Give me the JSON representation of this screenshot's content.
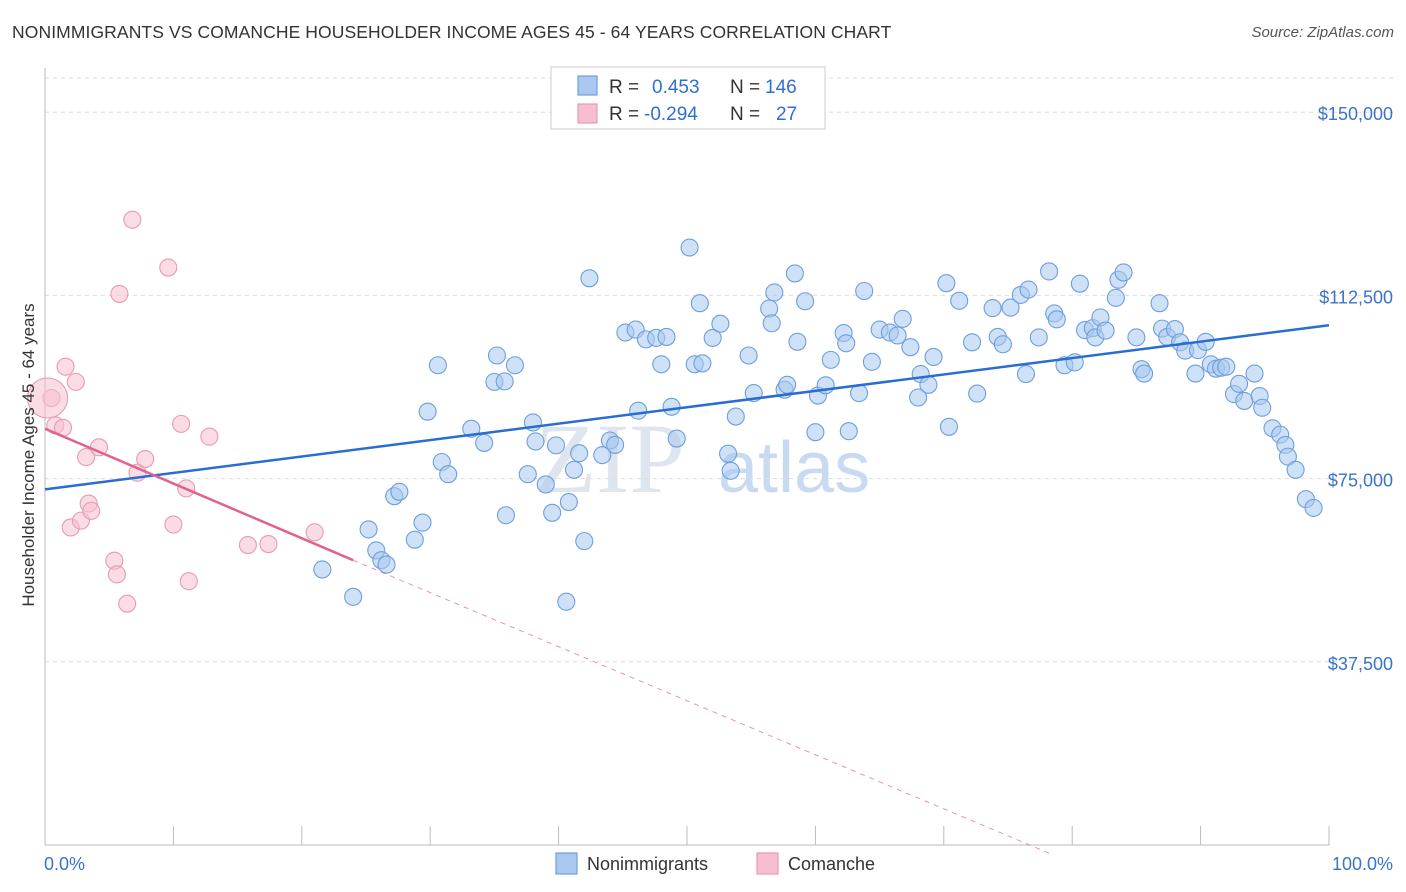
{
  "header": {
    "title": "NONIMMIGRANTS VS COMANCHE HOUSEHOLDER INCOME AGES 45 - 64 YEARS CORRELATION CHART",
    "source": "Source: ZipAtlas.com"
  },
  "watermark": {
    "zip": "ZIP",
    "atlas": "atlas"
  },
  "legend_top": [
    {
      "r_label": "R =",
      "r_value": "0.453",
      "n_label": "N =",
      "n_value": "146"
    },
    {
      "r_label": "R =",
      "r_value": "-0.294",
      "n_label": "N =",
      "n_value": "27"
    }
  ],
  "legend_bottom": [
    {
      "label": "Nonimmigrants"
    },
    {
      "label": "Comanche"
    }
  ],
  "colors": {
    "blue_fill": "#a8c8f0",
    "blue_stroke": "#6d9fdc",
    "blue_line": "#2a6dd0",
    "pink_fill": "#f6bfd0",
    "pink_stroke": "#e89ab4",
    "pink_line": "#e0628f",
    "grid": "#dddddd",
    "axis_text": "#3a74c8"
  },
  "chart_data": {
    "type": "scatter",
    "title": "NONIMMIGRANTS VS COMANCHE HOUSEHOLDER INCOME AGES 45 - 64 YEARS CORRELATION CHART",
    "xlabel": "",
    "ylabel": "Householder Income Ages 45 - 64 years",
    "xlim": [
      0,
      100
    ],
    "ylim": [
      0,
      157000
    ],
    "x_tick_labels": [
      "0.0%",
      "100.0%"
    ],
    "y_ticks": [
      37500,
      75000,
      112500,
      150000
    ],
    "y_tick_labels": [
      "$37,500",
      "$75,000",
      "$112,500",
      "$150,000"
    ],
    "grid": true,
    "legend_position": "top-center",
    "series": [
      {
        "name": "Nonimmigrants",
        "trend": {
          "x": [
            0,
            100
          ],
          "y": [
            72800,
            106400
          ]
        },
        "points": [
          [
            21.6,
            56400
          ],
          [
            24.0,
            50800
          ],
          [
            25.2,
            64600
          ],
          [
            25.8,
            60300
          ],
          [
            26.2,
            58300
          ],
          [
            26.6,
            57400
          ],
          [
            27.2,
            71400
          ],
          [
            27.6,
            72300
          ],
          [
            28.8,
            62500
          ],
          [
            29.4,
            66000
          ],
          [
            29.8,
            88700
          ],
          [
            30.6,
            98200
          ],
          [
            30.9,
            78400
          ],
          [
            31.4,
            75900
          ],
          [
            33.2,
            85200
          ],
          [
            34.2,
            82300
          ],
          [
            35.0,
            94800
          ],
          [
            35.2,
            100200
          ],
          [
            35.8,
            94900
          ],
          [
            35.9,
            67500
          ],
          [
            36.6,
            98200
          ],
          [
            37.6,
            75900
          ],
          [
            38.0,
            86500
          ],
          [
            38.2,
            82600
          ],
          [
            39.0,
            73800
          ],
          [
            39.5,
            68000
          ],
          [
            39.8,
            81800
          ],
          [
            40.6,
            49800
          ],
          [
            40.8,
            70200
          ],
          [
            41.2,
            76800
          ],
          [
            41.6,
            80200
          ],
          [
            42.0,
            62200
          ],
          [
            42.4,
            116000
          ],
          [
            43.4,
            79800
          ],
          [
            44.0,
            82800
          ],
          [
            44.4,
            81900
          ],
          [
            45.2,
            104900
          ],
          [
            46.0,
            105500
          ],
          [
            46.2,
            88900
          ],
          [
            46.8,
            103500
          ],
          [
            47.6,
            103800
          ],
          [
            48.0,
            98400
          ],
          [
            48.4,
            104000
          ],
          [
            48.8,
            89700
          ],
          [
            49.2,
            83200
          ],
          [
            50.2,
            122300
          ],
          [
            50.6,
            98400
          ],
          [
            51.0,
            110900
          ],
          [
            51.2,
            98600
          ],
          [
            52.0,
            103800
          ],
          [
            52.6,
            106700
          ],
          [
            53.2,
            80100
          ],
          [
            53.4,
            76600
          ],
          [
            53.8,
            87700
          ],
          [
            54.8,
            100200
          ],
          [
            55.2,
            92500
          ],
          [
            56.4,
            109800
          ],
          [
            56.6,
            106800
          ],
          [
            56.8,
            113100
          ],
          [
            57.6,
            93200
          ],
          [
            57.8,
            94200
          ],
          [
            58.4,
            117000
          ],
          [
            58.6,
            103000
          ],
          [
            59.2,
            111300
          ],
          [
            60.0,
            84500
          ],
          [
            60.2,
            92000
          ],
          [
            60.8,
            94100
          ],
          [
            61.2,
            99300
          ],
          [
            62.2,
            104800
          ],
          [
            62.4,
            102700
          ],
          [
            62.6,
            84700
          ],
          [
            63.4,
            92500
          ],
          [
            63.8,
            113400
          ],
          [
            64.4,
            98900
          ],
          [
            65.0,
            105500
          ],
          [
            65.8,
            104900
          ],
          [
            66.4,
            104300
          ],
          [
            66.8,
            107700
          ],
          [
            67.4,
            101900
          ],
          [
            68.0,
            91600
          ],
          [
            68.2,
            96400
          ],
          [
            68.8,
            94200
          ],
          [
            69.2,
            99900
          ],
          [
            70.2,
            115000
          ],
          [
            70.4,
            85600
          ],
          [
            71.2,
            111400
          ],
          [
            72.2,
            102900
          ],
          [
            72.6,
            92400
          ],
          [
            73.8,
            109900
          ],
          [
            74.2,
            104000
          ],
          [
            74.6,
            102500
          ],
          [
            75.2,
            110000
          ],
          [
            76.0,
            112600
          ],
          [
            76.4,
            96400
          ],
          [
            76.6,
            113700
          ],
          [
            77.4,
            103900
          ],
          [
            78.2,
            117400
          ],
          [
            78.6,
            108800
          ],
          [
            78.8,
            107600
          ],
          [
            79.4,
            98200
          ],
          [
            80.2,
            98800
          ],
          [
            80.6,
            114900
          ],
          [
            81.0,
            105400
          ],
          [
            81.6,
            105800
          ],
          [
            81.8,
            103900
          ],
          [
            82.2,
            108000
          ],
          [
            82.6,
            105300
          ],
          [
            83.4,
            112000
          ],
          [
            83.6,
            115700
          ],
          [
            84.0,
            117200
          ],
          [
            85.0,
            103900
          ],
          [
            85.4,
            97400
          ],
          [
            85.6,
            96500
          ],
          [
            86.8,
            110900
          ],
          [
            87.0,
            105700
          ],
          [
            87.4,
            104000
          ],
          [
            88.0,
            105600
          ],
          [
            88.4,
            102900
          ],
          [
            88.8,
            101200
          ],
          [
            89.6,
            96500
          ],
          [
            89.8,
            101300
          ],
          [
            90.4,
            103000
          ],
          [
            90.8,
            98400
          ],
          [
            91.2,
            97500
          ],
          [
            91.6,
            97700
          ],
          [
            92.0,
            97900
          ],
          [
            92.6,
            92300
          ],
          [
            93.0,
            94400
          ],
          [
            93.4,
            90900
          ],
          [
            94.2,
            96500
          ],
          [
            94.6,
            91900
          ],
          [
            94.8,
            89500
          ],
          [
            95.6,
            85300
          ],
          [
            96.2,
            84000
          ],
          [
            96.6,
            81900
          ],
          [
            96.8,
            79500
          ],
          [
            97.4,
            76800
          ],
          [
            98.2,
            70800
          ],
          [
            98.8,
            69000
          ]
        ]
      },
      {
        "name": "Comanche",
        "trend": {
          "x": [
            0,
            24.0
          ],
          "y": [
            85200,
            58300
          ]
        },
        "trend_dashed": {
          "x": [
            24.0,
            78.5
          ],
          "y": [
            58300,
            -2000
          ]
        },
        "points": [
          [
            0.5,
            91500
          ],
          [
            0.8,
            85900
          ],
          [
            1.4,
            85400
          ],
          [
            1.6,
            97900
          ],
          [
            2.0,
            65000
          ],
          [
            2.4,
            94800
          ],
          [
            2.8,
            66400
          ],
          [
            3.2,
            79400
          ],
          [
            3.4,
            69900
          ],
          [
            3.6,
            68400
          ],
          [
            4.2,
            81400
          ],
          [
            5.4,
            58200
          ],
          [
            5.6,
            55400
          ],
          [
            5.8,
            112800
          ],
          [
            6.4,
            49400
          ],
          [
            6.8,
            128000
          ],
          [
            7.2,
            76200
          ],
          [
            7.8,
            79000
          ],
          [
            9.6,
            118200
          ],
          [
            10.0,
            65600
          ],
          [
            10.6,
            86200
          ],
          [
            11.0,
            73000
          ],
          [
            11.2,
            54000
          ],
          [
            12.8,
            83600
          ],
          [
            15.8,
            61400
          ],
          [
            17.4,
            61600
          ],
          [
            21.0,
            64000
          ]
        ]
      }
    ]
  }
}
